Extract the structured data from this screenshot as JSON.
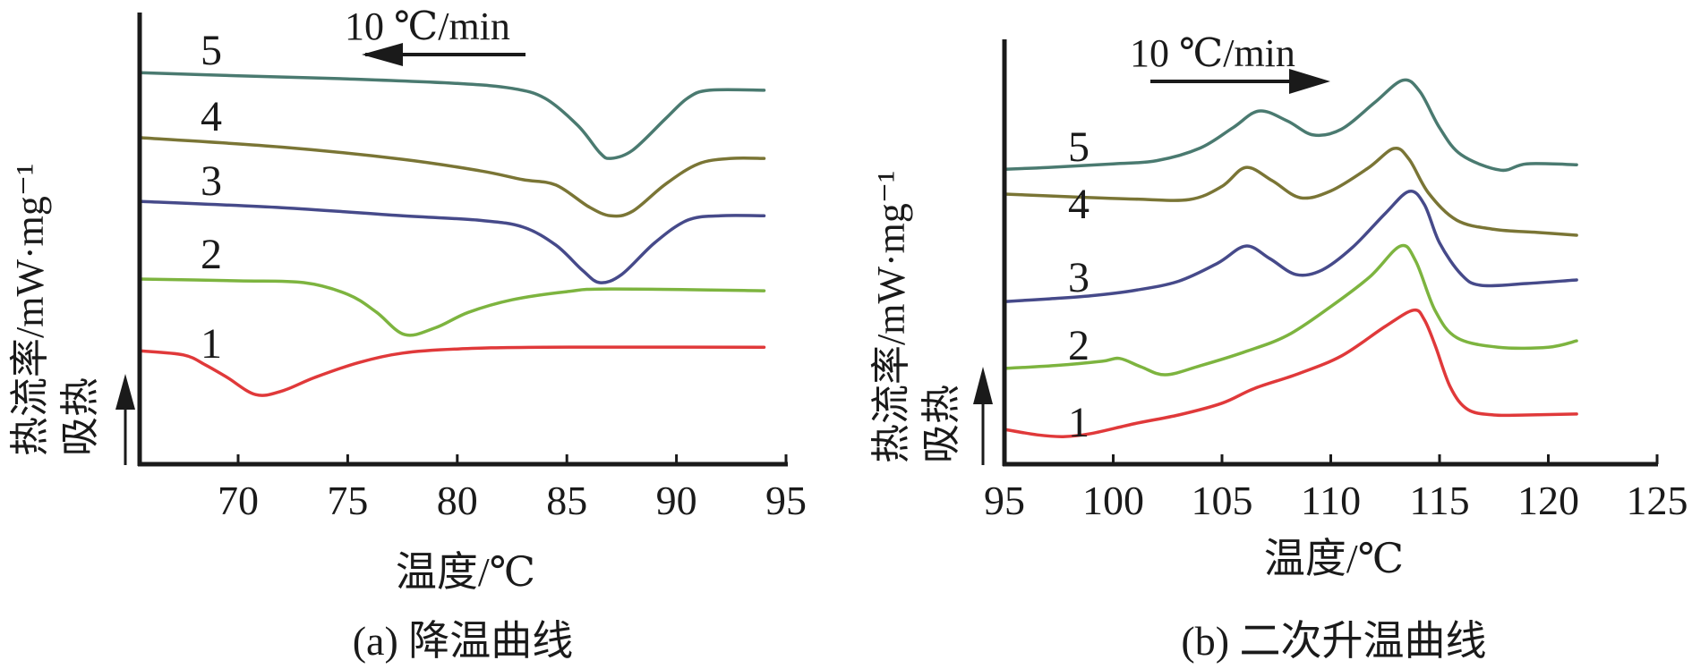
{
  "chart_data": [
    {
      "panel": "a",
      "type": "line",
      "title": "(a) 降温曲线",
      "xlabel": "温度/℃",
      "ylabel": "热流率/mW·mg⁻¹",
      "ylabel_secondary": "吸热",
      "rate_label": "10 ℃/min",
      "rate_direction": "left",
      "xlim": [
        65.5,
        95
      ],
      "ylim": [
        0,
        100
      ],
      "y_units": "relative (no tick values shown)",
      "xticks": [
        70,
        75,
        80,
        85,
        90,
        95
      ],
      "grid": false,
      "series": [
        {
          "name": "1",
          "color": "#E0393A",
          "points": [
            [
              65.5,
              25.1
            ],
            [
              67.5,
              24.2
            ],
            [
              68.5,
              22.0
            ],
            [
              69.5,
              19.2
            ],
            [
              70.8,
              15.4
            ],
            [
              72,
              16.2
            ],
            [
              73.5,
              19.2
            ],
            [
              75.5,
              22.5
            ],
            [
              77.5,
              24.6
            ],
            [
              80,
              25.5
            ],
            [
              84,
              25.9
            ],
            [
              94,
              25.9
            ]
          ]
        },
        {
          "name": "2",
          "color": "#7DB43F",
          "points": [
            [
              65.5,
              41.0
            ],
            [
              70,
              40.6
            ],
            [
              73,
              40.2
            ],
            [
              75,
              37.6
            ],
            [
              76.3,
              33.7
            ],
            [
              77.6,
              28.7
            ],
            [
              79,
              30.2
            ],
            [
              80.5,
              33.6
            ],
            [
              82.5,
              36.4
            ],
            [
              85,
              38.2
            ],
            [
              87,
              38.8
            ],
            [
              94,
              38.4
            ]
          ]
        },
        {
          "name": "3",
          "color": "#464A8A",
          "points": [
            [
              65.5,
              58.2
            ],
            [
              72,
              56.8
            ],
            [
              77.5,
              55.0
            ],
            [
              81,
              54.0
            ],
            [
              83,
              52.5
            ],
            [
              84.5,
              48.5
            ],
            [
              85.7,
              43.0
            ],
            [
              86.5,
              40.2
            ],
            [
              87.5,
              42.0
            ],
            [
              89,
              49.0
            ],
            [
              90.5,
              54.0
            ],
            [
              92,
              55.0
            ],
            [
              94,
              55.0
            ]
          ]
        },
        {
          "name": "4",
          "color": "#7A7535",
          "points": [
            [
              65.5,
              72.3
            ],
            [
              72,
              70.2
            ],
            [
              77.5,
              67.5
            ],
            [
              81,
              65.0
            ],
            [
              83,
              63.0
            ],
            [
              84.5,
              61.8
            ],
            [
              86,
              57.0
            ],
            [
              87,
              55.0
            ],
            [
              88,
              56.0
            ],
            [
              89.5,
              62.0
            ],
            [
              91,
              66.5
            ],
            [
              92.5,
              67.7
            ],
            [
              94,
              67.7
            ]
          ]
        },
        {
          "name": "5",
          "color": "#4A7A70",
          "points": [
            [
              65.5,
              86.7
            ],
            [
              70,
              86.0
            ],
            [
              75,
              85.3
            ],
            [
              80,
              84.3
            ],
            [
              82.5,
              83.2
            ],
            [
              84,
              81.0
            ],
            [
              85.5,
              75.0
            ],
            [
              86.5,
              69.0
            ],
            [
              87,
              67.7
            ],
            [
              88,
              69.5
            ],
            [
              89.5,
              76.5
            ],
            [
              90.5,
              81.0
            ],
            [
              91.5,
              82.8
            ],
            [
              94,
              82.8
            ]
          ]
        }
      ]
    },
    {
      "panel": "b",
      "type": "line",
      "title": "(b) 二次升温曲线",
      "xlabel": "温度/℃",
      "ylabel": "热流率/mW·mg⁻¹",
      "ylabel_secondary": "吸热",
      "rate_label": "10 ℃/min",
      "rate_direction": "right",
      "xlim": [
        95,
        125
      ],
      "ylim": [
        0,
        100
      ],
      "y_units": "relative (no tick values shown)",
      "xticks": [
        95,
        100,
        105,
        110,
        115,
        120,
        125
      ],
      "grid": false,
      "series": [
        {
          "name": "1",
          "color": "#E0393A",
          "points": [
            [
              95,
              7.7
            ],
            [
              96.5,
              6.5
            ],
            [
              97.7,
              6.1
            ],
            [
              99,
              6.8
            ],
            [
              101,
              9.0
            ],
            [
              103,
              10.9
            ],
            [
              105,
              13.5
            ],
            [
              106.5,
              16.8
            ],
            [
              108.5,
              20.0
            ],
            [
              110.5,
              24.0
            ],
            [
              112.5,
              30.5
            ],
            [
              113.8,
              34.1
            ],
            [
              114.3,
              32.0
            ],
            [
              114.8,
              26.3
            ],
            [
              115.5,
              17.0
            ],
            [
              116.3,
              12.1
            ],
            [
              117.5,
              10.9
            ],
            [
              119,
              10.9
            ],
            [
              121.3,
              11.1
            ]
          ]
        },
        {
          "name": "2",
          "color": "#7DB43F",
          "points": [
            [
              95,
              21.2
            ],
            [
              97.5,
              21.9
            ],
            [
              99.5,
              22.8
            ],
            [
              100.3,
              23.4
            ],
            [
              101.3,
              21.5
            ],
            [
              102.4,
              19.8
            ],
            [
              104,
              21.8
            ],
            [
              106,
              24.8
            ],
            [
              108,
              28.5
            ],
            [
              110,
              34.9
            ],
            [
              111.8,
              41.5
            ],
            [
              113.2,
              48.3
            ],
            [
              113.9,
              45.0
            ],
            [
              114.8,
              34.0
            ],
            [
              115.8,
              28.0
            ],
            [
              117.7,
              25.9
            ],
            [
              120,
              25.9
            ],
            [
              121.3,
              27.3
            ]
          ]
        },
        {
          "name": "3",
          "color": "#464A8A",
          "points": [
            [
              95,
              36.0
            ],
            [
              97,
              36.6
            ],
            [
              99,
              37.3
            ],
            [
              101,
              38.5
            ],
            [
              103,
              40.5
            ],
            [
              104.8,
              44.5
            ],
            [
              106.1,
              48.3
            ],
            [
              107.2,
              45.5
            ],
            [
              108.4,
              42.0
            ],
            [
              109.6,
              43.0
            ],
            [
              111,
              48.0
            ],
            [
              112.5,
              55.5
            ],
            [
              113.6,
              60.4
            ],
            [
              114.3,
              57.5
            ],
            [
              115,
              49.0
            ],
            [
              116,
              42.0
            ],
            [
              116.9,
              39.6
            ],
            [
              119,
              40.0
            ],
            [
              121.3,
              40.8
            ]
          ]
        },
        {
          "name": "4",
          "color": "#7A7535",
          "points": [
            [
              95,
              59.8
            ],
            [
              98,
              59.2
            ],
            [
              101,
              58.7
            ],
            [
              103.5,
              58.6
            ],
            [
              105,
              61.5
            ],
            [
              106.1,
              65.7
            ],
            [
              107.3,
              62.8
            ],
            [
              108.6,
              59.0
            ],
            [
              110,
              60.5
            ],
            [
              111.7,
              65.5
            ],
            [
              112.9,
              69.9
            ],
            [
              113.6,
              67.5
            ],
            [
              114.5,
              60.0
            ],
            [
              115.8,
              54.0
            ],
            [
              117.5,
              52.0
            ],
            [
              119.5,
              51.3
            ],
            [
              121.3,
              50.7
            ]
          ]
        },
        {
          "name": "5",
          "color": "#4A7A70",
          "points": [
            [
              95,
              65.3
            ],
            [
              97,
              65.7
            ],
            [
              100,
              66.5
            ],
            [
              102,
              67.2
            ],
            [
              104,
              70.0
            ],
            [
              105.5,
              74.5
            ],
            [
              106.7,
              78.2
            ],
            [
              108,
              76.0
            ],
            [
              109.2,
              72.9
            ],
            [
              110.5,
              74.2
            ],
            [
              112,
              80.0
            ],
            [
              113.3,
              85.0
            ],
            [
              114.1,
              82.5
            ],
            [
              115,
              74.5
            ],
            [
              116,
              68.5
            ],
            [
              117.8,
              65.1
            ],
            [
              119,
              66.5
            ],
            [
              121.3,
              66.3
            ]
          ]
        }
      ]
    }
  ]
}
